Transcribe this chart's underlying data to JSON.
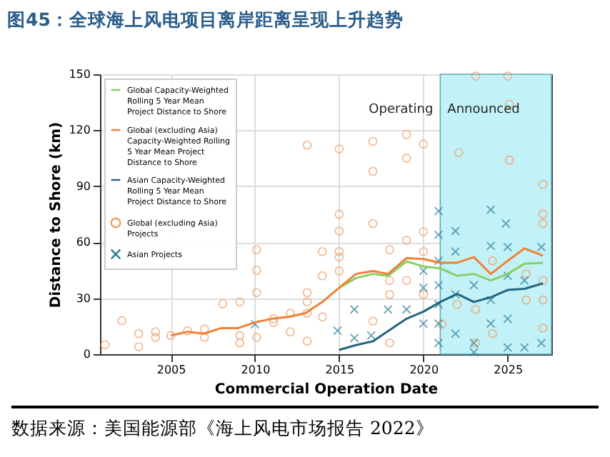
{
  "chart_data": {
    "type": "line",
    "title": "图45：全球海上风电项目离岸距离呈现上升趋势",
    "xlabel": "Commercial Operation Date",
    "ylabel": "Distance to Shore (km)",
    "annotations": [
      "Operating",
      "数据来源：美国能源部《海上风电市场报告 2022》"
    ],
    "xlim": [
      2000.8,
      2027.6
    ],
    "ylim": [
      0,
      150
    ],
    "xticks": [
      2005,
      2010,
      2015,
      2020,
      2025
    ],
    "yticks": [
      0,
      30,
      60,
      90,
      120,
      150
    ],
    "grid": true,
    "legend": "top left",
    "bands": [
      {
        "axis": "x",
        "from": 2021,
        "to": 2027.6,
        "color": "#c3f1f8",
        "label": "Announced"
      }
    ],
    "series": [
      {
        "name": "Global Capacity-Weighted Rolling 5 Year Mean Project Distance to Shore",
        "color": "#86cf63",
        "line_style": "solid",
        "marker": "none",
        "x": [
          2015,
          2016,
          2017,
          2017.9,
          2019,
          2020,
          2021,
          2022,
          2023,
          2024,
          2025,
          2026,
          2027.1
        ],
        "values": [
          35.6,
          40.8,
          43,
          42,
          49.7,
          47,
          46,
          42,
          43,
          39.5,
          43,
          48.5,
          49
        ]
      },
      {
        "name": "Global (excluding Asia) Capacity-Weighted Rolling 5 Year Mean Project Distance to Shore",
        "color": "#ee8236",
        "line_style": "solid",
        "marker": "none",
        "x": [
          2005,
          2006,
          2007,
          2008,
          2009,
          2010,
          2011,
          2012,
          2013,
          2014,
          2015,
          2016,
          2017,
          2017.9,
          2019,
          2020,
          2021,
          2022,
          2023,
          2024,
          2025,
          2026,
          2027.1
        ],
        "values": [
          10,
          12,
          11,
          14,
          14,
          17,
          19,
          20,
          22,
          28,
          35.6,
          43,
          44.6,
          43,
          51.5,
          51,
          49,
          49,
          52,
          43,
          50,
          56.7,
          52.8
        ]
      },
      {
        "name": "Asian Capacity-Weighted Rolling 5 Year Mean Project Distance to Shore",
        "color": "#22667e",
        "line_style": "solid",
        "marker": "none",
        "x": [
          2015,
          2016,
          2017,
          2019,
          2020,
          2021,
          2022,
          2023,
          2024,
          2025,
          2026,
          2027.1
        ],
        "values": [
          2.3,
          4.9,
          6.9,
          19,
          22.8,
          28,
          32.3,
          28,
          30.5,
          34.4,
          35,
          38
        ]
      },
      {
        "name": "Global (excluding Asia) Projects",
        "type": "scatter",
        "color": "#f0a06a",
        "marker": "circle",
        "x": [
          2001.1,
          2002.1,
          2003.1,
          2003.1,
          2004.1,
          2004.1,
          2005,
          2006,
          2007,
          2007,
          2008.1,
          2009.1,
          2009.1,
          2009.1,
          2010.1,
          2010.1,
          2010.1,
          2010.1,
          2011.1,
          2011.1,
          2012.1,
          2012.1,
          2013.1,
          2013.1,
          2013.1,
          2013.1,
          2013.1,
          2015,
          2015,
          2015,
          2015,
          2015,
          2015,
          2014,
          2014,
          2014,
          2017,
          2017,
          2017,
          2017,
          2018,
          2018,
          2018,
          2018,
          2019,
          2019,
          2019,
          2019,
          2020,
          2020,
          2020,
          2020,
          2022.1,
          2023.1,
          2025,
          2025.1,
          2025.1,
          2027.1,
          2027.1,
          2027.1,
          2027.1,
          2027.1,
          2027.1,
          2026.1,
          2026.1,
          2024.1,
          2024.1,
          2023.1,
          2022,
          2023.1,
          2021.1
        ],
        "values": [
          5,
          18,
          11,
          4,
          12,
          9,
          10,
          12.5,
          13.5,
          9,
          27,
          28,
          10,
          6,
          56,
          45,
          33,
          9,
          19,
          17,
          22,
          12,
          112,
          33,
          28,
          22,
          7,
          110,
          75,
          66,
          55,
          52,
          44.6,
          55,
          42,
          20,
          114,
          98,
          70,
          17.7,
          56,
          39.5,
          32,
          6,
          117.7,
          105,
          61,
          39.5,
          112.6,
          65.6,
          55,
          32,
          108,
          149,
          149,
          134,
          104,
          91,
          75,
          70,
          39.5,
          29,
          14,
          43,
          29,
          50,
          11,
          24,
          26.7,
          6,
          16
        ]
      },
      {
        "name": "Asian Projects",
        "type": "scatter",
        "color": "#2a7d9c",
        "marker": "cross",
        "x": [
          2010,
          2020.9,
          2020.9,
          2020.9,
          2020.9,
          2020.9,
          2020.9,
          2020.9,
          2021.9,
          2021.9,
          2021.9,
          2021.9,
          2024,
          2024,
          2024,
          2024,
          2024.9,
          2025,
          2025,
          2025,
          2025,
          2023,
          2023,
          2026,
          2026,
          2027,
          2027,
          2020,
          2020,
          2019,
          2017.9,
          2015.9,
          2015.9,
          2014.9,
          2016.9,
          2020,
          2023
        ],
        "values": [
          16,
          76.7,
          64,
          50,
          37,
          26.7,
          16.4,
          6,
          66,
          55,
          32,
          11,
          77.4,
          58,
          29,
          16.4,
          70,
          57.4,
          42,
          19,
          3.6,
          37,
          6,
          39.5,
          3.6,
          57.4,
          6,
          35.6,
          16.4,
          24,
          24,
          24,
          8.7,
          12.6,
          10,
          44.6,
          1
        ]
      }
    ]
  }
}
